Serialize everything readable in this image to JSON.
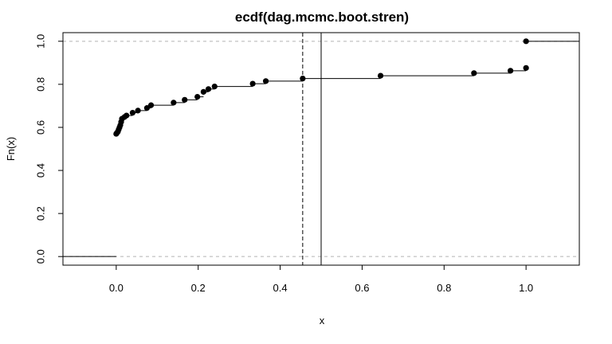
{
  "chart_data": {
    "type": "ecdf",
    "title": "ecdf(dag.mcmc.boot.stren)",
    "xlabel": "x",
    "ylabel": "Fn(x)",
    "xlim": [
      -0.13,
      1.13
    ],
    "ylim": [
      -0.04,
      1.04
    ],
    "x_ticks": [
      0.0,
      0.2,
      0.4,
      0.6,
      0.8,
      1.0
    ],
    "x_tick_labels": [
      "0.0",
      "0.2",
      "0.4",
      "0.6",
      "0.8",
      "1.0"
    ],
    "y_ticks": [
      0.0,
      0.2,
      0.4,
      0.6,
      0.8,
      1.0
    ],
    "y_tick_labels": [
      "0.0",
      "0.2",
      "0.4",
      "0.6",
      "0.8",
      "1.0"
    ],
    "grid": false,
    "reference_hlines": [
      0.0,
      1.0
    ],
    "vline_dashed_x": 0.455,
    "vline_solid_x": 0.5,
    "points": [
      {
        "x": 0.0,
        "y": 0.57
      },
      {
        "x": 0.002,
        "y": 0.575
      },
      {
        "x": 0.004,
        "y": 0.58
      },
      {
        "x": 0.006,
        "y": 0.59
      },
      {
        "x": 0.008,
        "y": 0.6
      },
      {
        "x": 0.01,
        "y": 0.61
      },
      {
        "x": 0.012,
        "y": 0.625
      },
      {
        "x": 0.014,
        "y": 0.64
      },
      {
        "x": 0.02,
        "y": 0.648
      },
      {
        "x": 0.025,
        "y": 0.655
      },
      {
        "x": 0.04,
        "y": 0.668
      },
      {
        "x": 0.053,
        "y": 0.678
      },
      {
        "x": 0.075,
        "y": 0.69
      },
      {
        "x": 0.085,
        "y": 0.703
      },
      {
        "x": 0.14,
        "y": 0.715
      },
      {
        "x": 0.167,
        "y": 0.728
      },
      {
        "x": 0.198,
        "y": 0.742
      },
      {
        "x": 0.213,
        "y": 0.765
      },
      {
        "x": 0.225,
        "y": 0.778
      },
      {
        "x": 0.24,
        "y": 0.79
      },
      {
        "x": 0.333,
        "y": 0.803
      },
      {
        "x": 0.365,
        "y": 0.815
      },
      {
        "x": 0.455,
        "y": 0.827
      },
      {
        "x": 0.645,
        "y": 0.84
      },
      {
        "x": 0.873,
        "y": 0.852
      },
      {
        "x": 0.962,
        "y": 0.863
      },
      {
        "x": 1.0,
        "y": 0.876
      },
      {
        "x": 1.0,
        "y": 1.0
      }
    ],
    "colors": {
      "points": "#000000",
      "steps": "#000000",
      "reference_lines": "#b3b3b3",
      "vlines": "#000000",
      "frame": "#000000"
    }
  }
}
